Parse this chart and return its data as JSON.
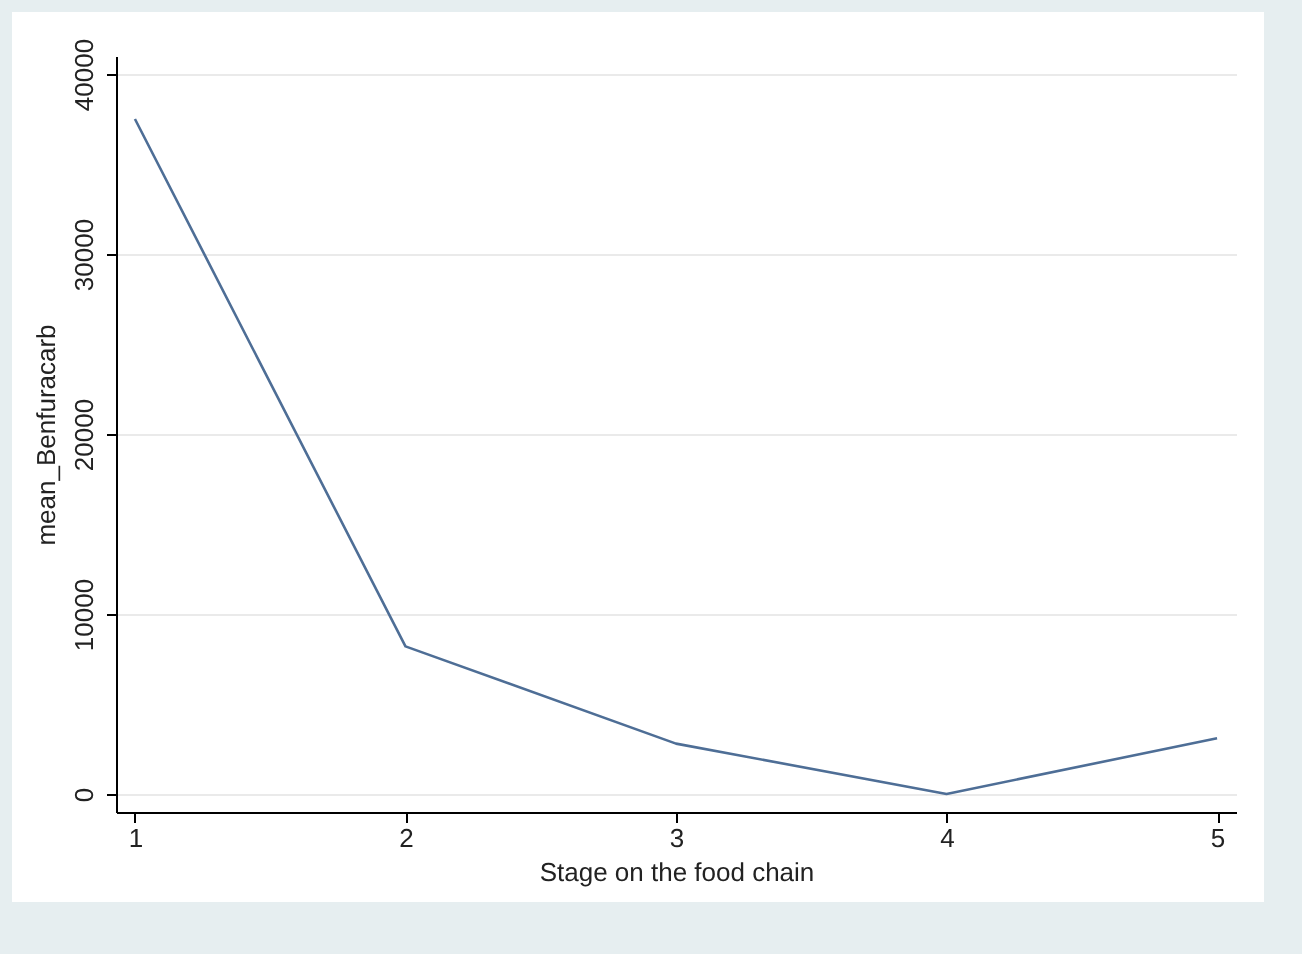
{
  "chart_data": {
    "type": "line",
    "xlabel": "Stage on the food chain",
    "ylabel": "mean_Benfuracarb",
    "x": [
      1,
      2,
      3,
      4,
      5
    ],
    "series": [
      {
        "color": "#4e6e96",
        "values": [
          37500,
          8200,
          2800,
          0,
          3100
        ]
      }
    ],
    "xlim": [
      0.93,
      5.07
    ],
    "ylim": [
      -1000,
      41000
    ],
    "xticks": [
      1,
      2,
      3,
      4,
      5
    ],
    "yticks": [
      0,
      10000,
      20000,
      30000,
      40000
    ],
    "grid": "y",
    "legend": false,
    "marker": "none",
    "line_style": "solid"
  }
}
